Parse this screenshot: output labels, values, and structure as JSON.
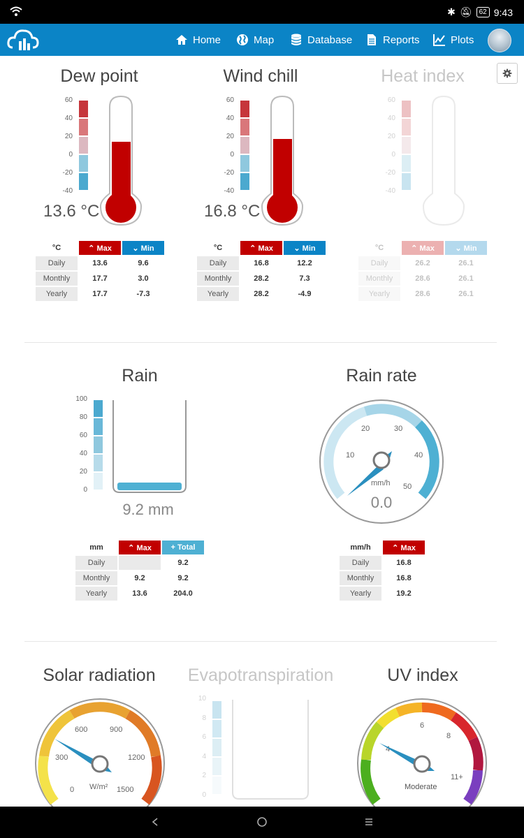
{
  "statusbar": {
    "battery": "62",
    "time": "9:43"
  },
  "nav": {
    "items": [
      {
        "label": "Home",
        "icon": "home-icon"
      },
      {
        "label": "Map",
        "icon": "globe-icon"
      },
      {
        "label": "Database",
        "icon": "database-icon"
      },
      {
        "label": "Reports",
        "icon": "document-icon"
      },
      {
        "label": "Plots",
        "icon": "chart-icon"
      }
    ]
  },
  "dew_point": {
    "title": "Dew point",
    "value": "13.6 °C",
    "unit": "°C",
    "max_label": "Max",
    "min_label": "Min",
    "scale": [
      "60",
      "40",
      "20",
      "0",
      "-20",
      "-40"
    ],
    "rows": [
      {
        "label": "Daily",
        "max": "13.6",
        "min": "9.6"
      },
      {
        "label": "Monthly",
        "max": "17.7",
        "min": "3.0"
      },
      {
        "label": "Yearly",
        "max": "17.7",
        "min": "-7.3"
      }
    ]
  },
  "wind_chill": {
    "title": "Wind chill",
    "value": "16.8 °C",
    "unit": "°C",
    "max_label": "Max",
    "min_label": "Min",
    "scale": [
      "60",
      "40",
      "20",
      "0",
      "-20",
      "-40"
    ],
    "rows": [
      {
        "label": "Daily",
        "max": "16.8",
        "min": "12.2"
      },
      {
        "label": "Monthly",
        "max": "28.2",
        "min": "7.3"
      },
      {
        "label": "Yearly",
        "max": "28.2",
        "min": "-4.9"
      }
    ]
  },
  "heat_index": {
    "title": "Heat index",
    "unit": "°C",
    "max_label": "Max",
    "min_label": "Min",
    "scale": [
      "60",
      "40",
      "20",
      "0",
      "-20",
      "-40"
    ],
    "rows": [
      {
        "label": "Daily",
        "max": "26.2",
        "min": "26.1"
      },
      {
        "label": "Monthly",
        "max": "28.6",
        "min": "26.1"
      },
      {
        "label": "Yearly",
        "max": "28.6",
        "min": "26.1"
      }
    ]
  },
  "rain": {
    "title": "Rain",
    "value": "9.2  mm",
    "level_percent": 9.2,
    "unit": "mm",
    "max_label": "Max",
    "total_label": "Total",
    "scale": [
      "100",
      "80",
      "60",
      "40",
      "20",
      "0"
    ],
    "rows": [
      {
        "label": "Daily",
        "max": "",
        "total": "9.2"
      },
      {
        "label": "Monthly",
        "max": "9.2",
        "total": "9.2"
      },
      {
        "label": "Yearly",
        "max": "13.6",
        "total": "204.0"
      }
    ]
  },
  "rain_rate": {
    "title": "Rain rate",
    "value": "0.0",
    "unit": "mm/h",
    "max_label": "Max",
    "ticks": [
      "10",
      "20",
      "30",
      "40",
      "50"
    ],
    "rows": [
      {
        "label": "Daily",
        "max": "16.8"
      },
      {
        "label": "Monthly",
        "max": "16.8"
      },
      {
        "label": "Yearly",
        "max": "19.2"
      }
    ]
  },
  "solar": {
    "title": "Solar radiation",
    "unit": "W/m²",
    "ticks": [
      "0",
      "300",
      "600",
      "900",
      "1200",
      "1500"
    ]
  },
  "evapotranspiration": {
    "title": "Evapotranspiration",
    "scale": [
      "10",
      "8",
      "6",
      "4",
      "2",
      "0"
    ]
  },
  "uv": {
    "title": "UV index",
    "label": "Moderate",
    "ticks": [
      "2",
      "4",
      "6",
      "8",
      "11+"
    ]
  }
}
